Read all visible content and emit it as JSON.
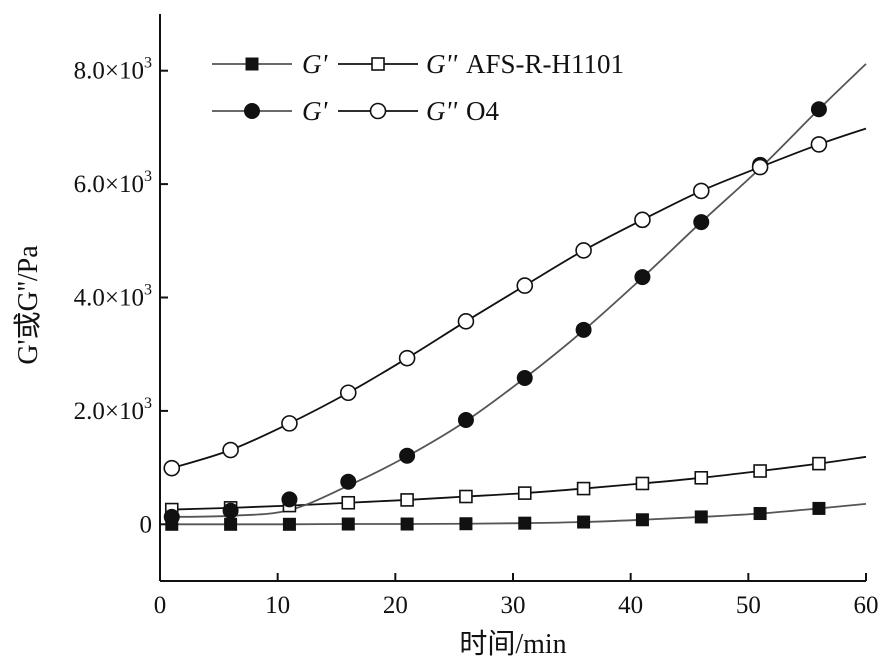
{
  "chart_data": {
    "type": "line",
    "xlabel": "时间/min",
    "ylabel": "G'或G''/Pa",
    "xlim": [
      0,
      60
    ],
    "ylim": [
      -1000,
      9000
    ],
    "xticks": [
      0,
      10,
      20,
      30,
      40,
      50,
      60
    ],
    "xtick_labels": [
      "0",
      "10",
      "20",
      "30",
      "40",
      "50",
      "60"
    ],
    "yticks": [
      0,
      2000,
      4000,
      6000,
      8000
    ],
    "ytick_labels": [
      {
        "mantissa": "0",
        "exponent": ""
      },
      {
        "mantissa": "2.0×10",
        "exponent": "3"
      },
      {
        "mantissa": "4.0×10",
        "exponent": "3"
      },
      {
        "mantissa": "6.0×10",
        "exponent": "3"
      },
      {
        "mantissa": "8.0×10",
        "exponent": "3"
      }
    ],
    "legend_position": "top-left",
    "legend_rows": [
      {
        "g1": "G'",
        "g2": "G''",
        "name": "AFS-R-H1101"
      },
      {
        "g1": "G'",
        "g2": "G''",
        "name": "O4"
      }
    ],
    "series": [
      {
        "name": "G' AFS-R-H1101",
        "marker": "filled-square",
        "color": "#555555",
        "x": [
          1,
          6,
          11,
          16,
          21,
          26,
          31,
          36,
          41,
          46,
          51,
          56
        ],
        "values": [
          0,
          0,
          0,
          5,
          5,
          10,
          20,
          40,
          80,
          130,
          190,
          280
        ],
        "line_x": [
          1,
          6,
          11,
          16,
          21,
          26,
          31,
          36,
          41,
          46,
          51,
          56,
          60
        ],
        "line_values": [
          0,
          0,
          0,
          5,
          5,
          10,
          20,
          40,
          80,
          130,
          190,
          280,
          360
        ]
      },
      {
        "name": "G'' AFS-R-H1101",
        "marker": "open-square",
        "color": "#111111",
        "x": [
          1,
          6,
          11,
          16,
          21,
          26,
          31,
          36,
          41,
          46,
          51,
          56
        ],
        "values": [
          260,
          290,
          330,
          380,
          430,
          490,
          550,
          630,
          720,
          820,
          940,
          1070
        ],
        "line_x": [
          1,
          6,
          11,
          16,
          21,
          26,
          31,
          36,
          41,
          46,
          51,
          56,
          60
        ],
        "line_values": [
          260,
          290,
          330,
          380,
          430,
          490,
          550,
          630,
          720,
          820,
          940,
          1070,
          1190
        ]
      },
      {
        "name": "G' O4",
        "marker": "filled-circle",
        "color": "#555555",
        "x": [
          1,
          6,
          11,
          16,
          21,
          26,
          31,
          36,
          41,
          46,
          51,
          56
        ],
        "values": [
          130,
          240,
          440,
          750,
          1210,
          1840,
          2580,
          3430,
          4360,
          5330,
          6340,
          7320
        ],
        "line_x": [
          1,
          6,
          11,
          16,
          21,
          26,
          31,
          36,
          41,
          46,
          51,
          56,
          60
        ],
        "line_values": [
          130,
          150,
          250,
          680,
          1200,
          1820,
          2580,
          3420,
          4350,
          5330,
          6280,
          7320,
          8120
        ]
      },
      {
        "name": "G'' O4",
        "marker": "open-circle",
        "color": "#111111",
        "x": [
          1,
          6,
          11,
          16,
          21,
          26,
          31,
          36,
          41,
          46,
          51,
          56
        ],
        "values": [
          990,
          1310,
          1780,
          2320,
          2930,
          3580,
          4210,
          4830,
          5370,
          5880,
          6300,
          6700
        ],
        "line_x": [
          1,
          6,
          11,
          16,
          21,
          26,
          31,
          36,
          41,
          46,
          51,
          56,
          60
        ],
        "line_values": [
          990,
          1310,
          1780,
          2320,
          2930,
          3580,
          4210,
          4830,
          5370,
          5880,
          6300,
          6700,
          6980
        ]
      }
    ]
  }
}
